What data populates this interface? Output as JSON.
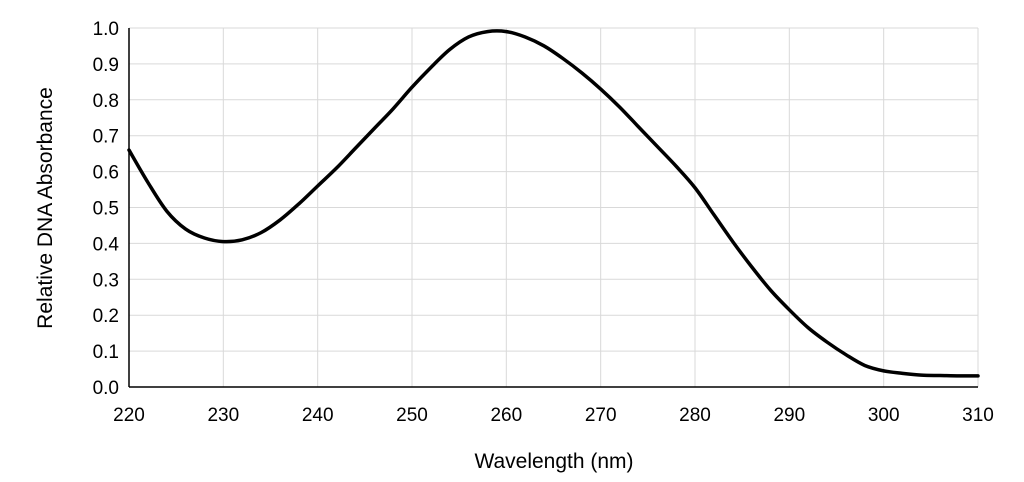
{
  "chart_data": {
    "type": "line",
    "title": "",
    "xlabel": "Wavelength (nm)",
    "ylabel": "Relative DNA Absorbance",
    "xlim": [
      220,
      310
    ],
    "ylim": [
      0.0,
      1.0
    ],
    "x_ticks": [
      220,
      230,
      240,
      250,
      260,
      270,
      280,
      290,
      300,
      310
    ],
    "y_ticks": [
      0.0,
      0.1,
      0.2,
      0.3,
      0.4,
      0.5,
      0.6,
      0.7,
      0.8,
      0.9,
      1.0
    ],
    "x_tick_labels": [
      "220",
      "230",
      "240",
      "250",
      "260",
      "270",
      "280",
      "290",
      "300",
      "310"
    ],
    "y_tick_labels": [
      "0.0",
      "0.1",
      "0.2",
      "0.3",
      "0.4",
      "0.5",
      "0.6",
      "0.7",
      "0.8",
      "0.9",
      "1.0"
    ],
    "grid": true,
    "legend": "none",
    "line_color": "#000000",
    "grid_color": "#d9d9d9",
    "series": [
      {
        "x": [
          220,
          222,
          224,
          226,
          228,
          230,
          232,
          234,
          236,
          238,
          240,
          242,
          244,
          246,
          248,
          250,
          252,
          254,
          256,
          258,
          260,
          262,
          264,
          266,
          268,
          270,
          272,
          274,
          276,
          278,
          280,
          282,
          284,
          286,
          288,
          290,
          292,
          294,
          296,
          298,
          300,
          302,
          304,
          306,
          308,
          310
        ],
        "y": [
          0.66,
          0.57,
          0.49,
          0.44,
          0.415,
          0.405,
          0.41,
          0.43,
          0.465,
          0.51,
          0.56,
          0.61,
          0.665,
          0.72,
          0.775,
          0.835,
          0.89,
          0.94,
          0.975,
          0.99,
          0.99,
          0.975,
          0.95,
          0.915,
          0.875,
          0.83,
          0.78,
          0.725,
          0.67,
          0.615,
          0.555,
          0.48,
          0.405,
          0.335,
          0.27,
          0.215,
          0.165,
          0.125,
          0.09,
          0.06,
          0.045,
          0.038,
          0.033,
          0.032,
          0.031,
          0.031
        ]
      }
    ]
  }
}
